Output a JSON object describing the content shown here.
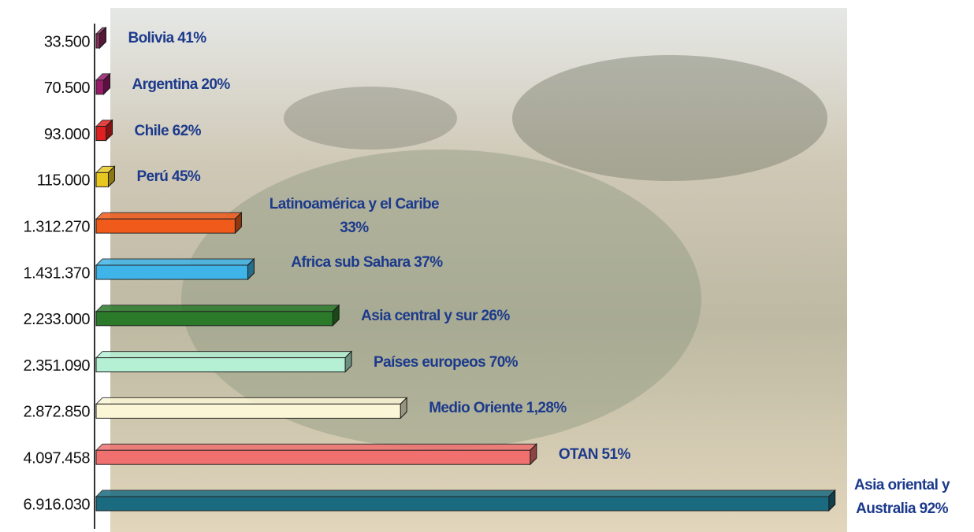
{
  "chart_data": {
    "type": "hbar",
    "categories": [
      "Bolivia 41%",
      "Argentina 20%",
      "Chile 62%",
      "Perú 45%",
      "Latinoamérica y el Caribe 33%",
      "Africa sub Sahara 37%",
      "Asia central y sur 26%",
      "Países europeos 70%",
      "Medio Oriente 1,28%",
      "OTAN 51%",
      "Asia oriental y Australia 92%"
    ],
    "values": [
      33500,
      70500,
      93000,
      115000,
      1312270,
      1431370,
      2233000,
      2351090,
      2872850,
      4097458,
      6916030
    ],
    "value_labels": [
      "33.500",
      "70.500",
      "93.000",
      "115.000",
      "1.312.270",
      "1.431.370",
      "2.233.000",
      "2.351.090",
      "2.872.850",
      "4.097.458",
      "6.916.030"
    ],
    "colors": [
      "#8a2a5a",
      "#9a1a6a",
      "#e02020",
      "#e8c820",
      "#f05a1a",
      "#3fb4e8",
      "#2a7a2a",
      "#b5f0d5",
      "#fbf6d5",
      "#f07070",
      "#1a6a80"
    ],
    "xlim": [
      0,
      7000000
    ]
  }
}
